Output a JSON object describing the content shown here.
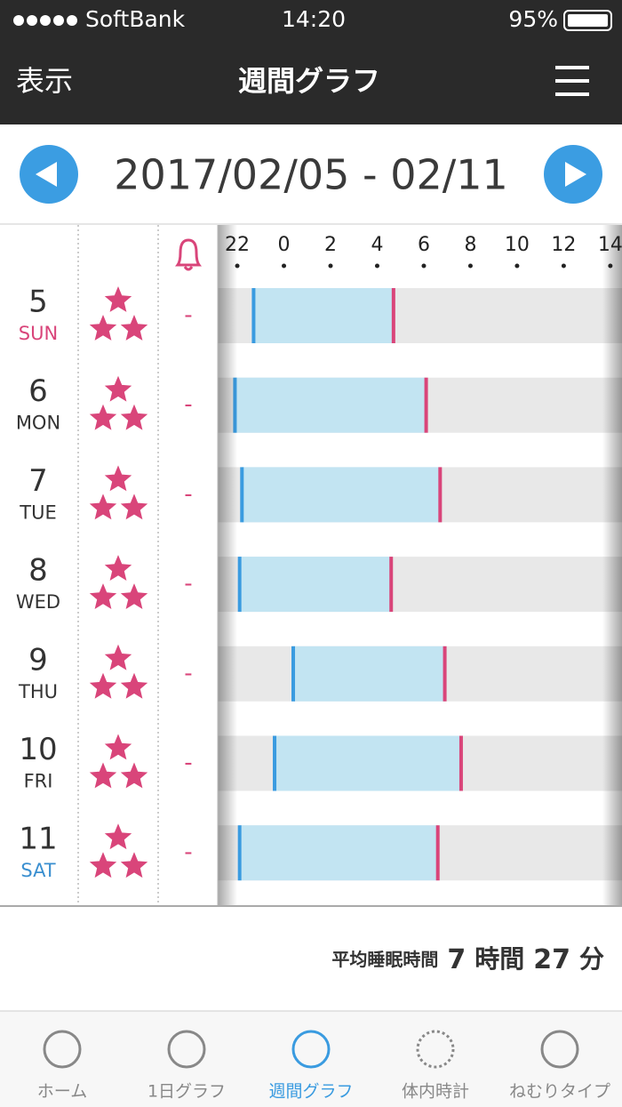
{
  "status": {
    "carrier": "SoftBank",
    "time": "14:20",
    "battery": "95%"
  },
  "header": {
    "left": "表示",
    "title": "週間グラフ"
  },
  "date_range": "2017/02/05 - 02/11",
  "graph": {
    "xlim": [
      21.16,
      38.5
    ],
    "xticks": [
      22,
      {
        "value": 24,
        "label": "0"
      },
      {
        "value": 26,
        "label": "2"
      },
      {
        "value": 28,
        "label": "4"
      },
      {
        "value": 30,
        "label": "6"
      },
      {
        "value": 32,
        "label": "8"
      },
      {
        "value": 34,
        "label": "10"
      },
      {
        "value": 36,
        "label": "12"
      },
      {
        "value": 38,
        "label": "14"
      }
    ],
    "rows": [
      {
        "date": "5",
        "weekday": "SUN",
        "stars": 3,
        "alarm": "-",
        "start": 22.7,
        "end": 28.7
      },
      {
        "date": "6",
        "weekday": "MON",
        "stars": 3,
        "alarm": "-",
        "start": 21.9,
        "end": 30.1
      },
      {
        "date": "7",
        "weekday": "TUE",
        "stars": 3,
        "alarm": "-",
        "start": 22.2,
        "end": 30.7
      },
      {
        "date": "8",
        "weekday": "WED",
        "stars": 3,
        "alarm": "-",
        "start": 22.1,
        "end": 28.6
      },
      {
        "date": "9",
        "weekday": "THU",
        "stars": 3,
        "alarm": "-",
        "start": 24.4,
        "end": 30.9
      },
      {
        "date": "10",
        "weekday": "FRI",
        "stars": 3,
        "alarm": "-",
        "start": 23.6,
        "end": 31.6
      },
      {
        "date": "11",
        "weekday": "SAT",
        "stars": 3,
        "alarm": "-",
        "start": 22.1,
        "end": 30.6
      }
    ]
  },
  "summary": {
    "label": "平均睡眠時間",
    "hours": "7",
    "hours_unit": "時間",
    "minutes": "27",
    "minutes_unit": "分"
  },
  "tabs": [
    "ホーム",
    "1日グラフ",
    "週間グラフ",
    "体内時計",
    "ねむりタイプ"
  ],
  "active_tab": 2
}
